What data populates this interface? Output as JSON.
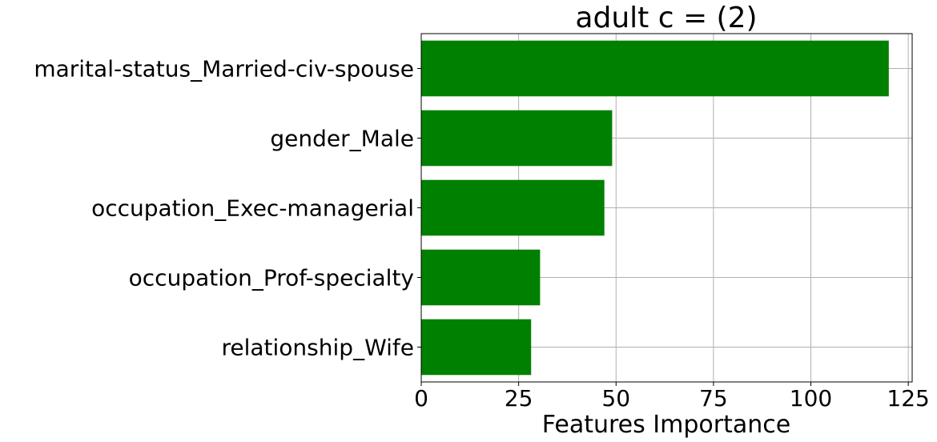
{
  "chart_data": {
    "type": "bar",
    "orientation": "horizontal",
    "title": "adult c = (2)",
    "xlabel": "Features Importance",
    "ylabel": "",
    "categories": [
      "marital-status_Married-civ-spouse",
      "gender_Male",
      "occupation_Exec-managerial",
      "occupation_Prof-specialty",
      "relationship_Wife"
    ],
    "values": [
      120,
      49,
      47,
      30.5,
      28.2
    ],
    "xlim": [
      0,
      126
    ],
    "xticks": [
      0,
      25,
      50,
      75,
      100,
      125
    ],
    "xtick_labels": [
      "0",
      "25",
      "50",
      "75",
      "100",
      "125"
    ],
    "grid": true,
    "bar_color": "#008000",
    "legend": "none"
  }
}
